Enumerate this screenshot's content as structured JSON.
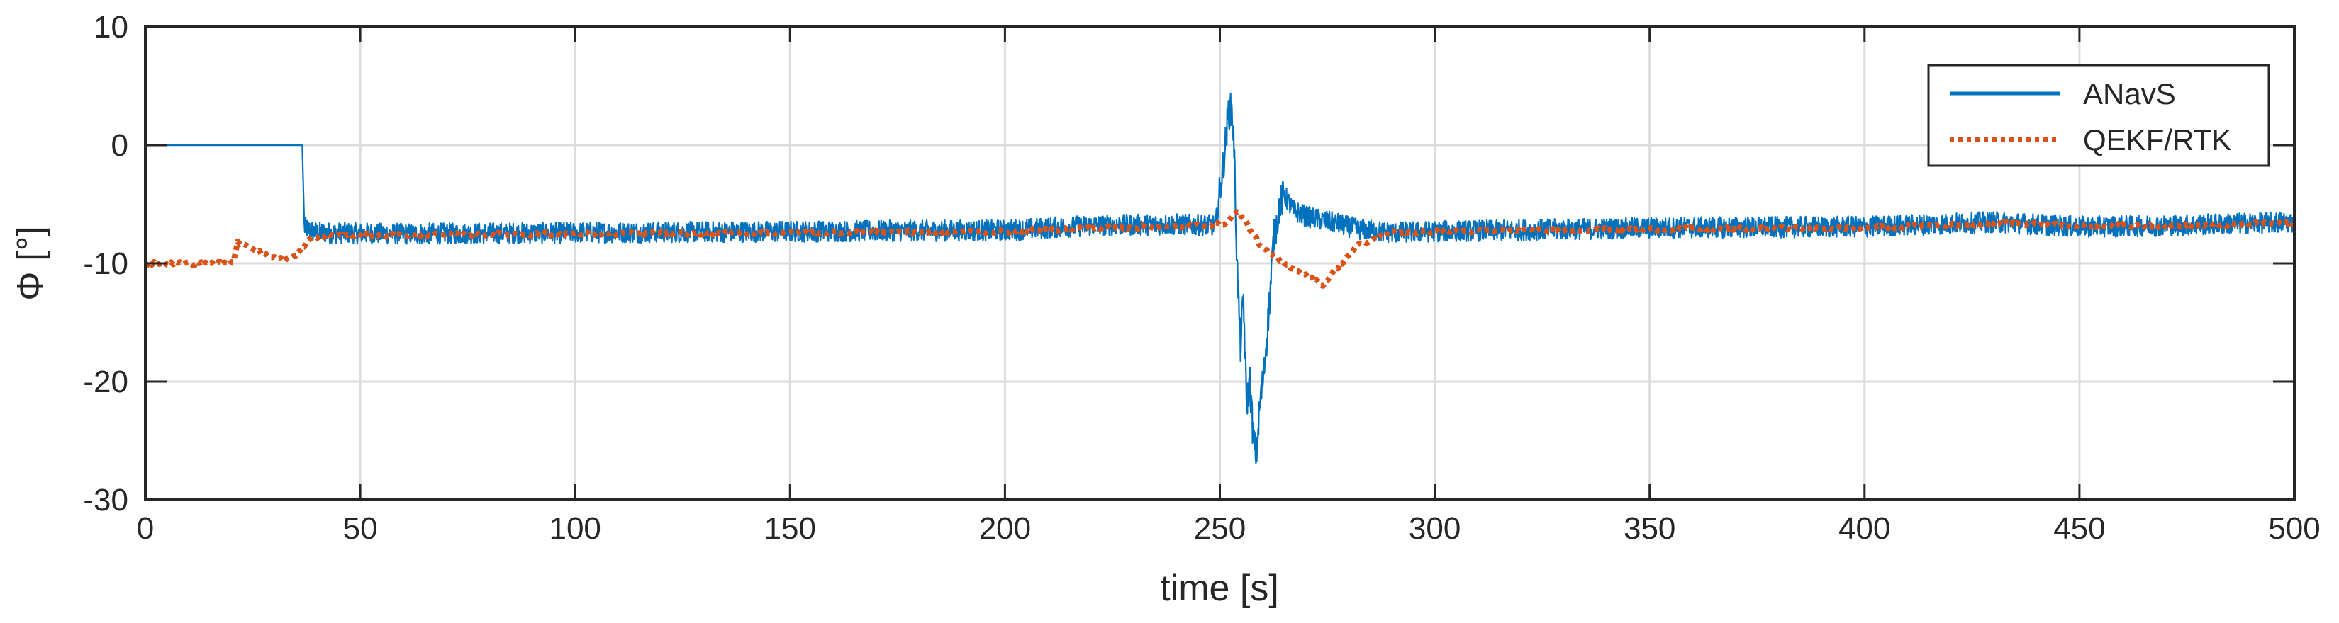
{
  "chart_data": {
    "type": "line",
    "title": "",
    "xlabel": "time [s]",
    "ylabel": "Φ [°]",
    "xlim": [
      0,
      500
    ],
    "ylim": [
      -30,
      10
    ],
    "xticks": [
      0,
      50,
      100,
      150,
      200,
      250,
      300,
      350,
      400,
      450,
      500
    ],
    "yticks": [
      -30,
      -20,
      -10,
      0,
      10
    ],
    "grid": true,
    "legend_position": "top-right",
    "series": [
      {
        "name": "ANavS",
        "color": "#0072BD",
        "style": "solid",
        "noise_amplitude": 0.9,
        "points": [
          [
            0,
            0
          ],
          [
            36.5,
            0
          ],
          [
            37,
            -7.0
          ],
          [
            40,
            -7.4
          ],
          [
            60,
            -7.5
          ],
          [
            100,
            -7.4
          ],
          [
            150,
            -7.3
          ],
          [
            200,
            -7.2
          ],
          [
            220,
            -6.8
          ],
          [
            240,
            -6.7
          ],
          [
            249,
            -6.8
          ],
          [
            251,
            -1
          ],
          [
            252,
            2.8
          ],
          [
            252.8,
            3
          ],
          [
            253.3,
            0
          ],
          [
            254,
            -10
          ],
          [
            254.8,
            -17
          ],
          [
            255.5,
            -13
          ],
          [
            256.2,
            -22
          ],
          [
            257,
            -20
          ],
          [
            257.8,
            -25
          ],
          [
            258.5,
            -26.2
          ],
          [
            259.3,
            -22
          ],
          [
            260,
            -20
          ],
          [
            261,
            -16
          ],
          [
            261.8,
            -12
          ],
          [
            262.5,
            -8
          ],
          [
            264,
            -5
          ],
          [
            265,
            -4.2
          ],
          [
            267,
            -5.5
          ],
          [
            270,
            -6.0
          ],
          [
            273,
            -6.3
          ],
          [
            277,
            -6.6
          ],
          [
            282,
            -7.1
          ],
          [
            290,
            -7.4
          ],
          [
            300,
            -7.3
          ],
          [
            350,
            -7.0
          ],
          [
            400,
            -6.9
          ],
          [
            430,
            -6.5
          ],
          [
            450,
            -6.9
          ],
          [
            470,
            -6.8
          ],
          [
            500,
            -6.5
          ]
        ]
      },
      {
        "name": "QEKF/RTK",
        "color": "#D95319",
        "style": "dotted",
        "noise_amplitude": 0.15,
        "points": [
          [
            0,
            -10
          ],
          [
            20.5,
            -10
          ],
          [
            21.5,
            -8.2
          ],
          [
            24,
            -8.5
          ],
          [
            28,
            -9.3
          ],
          [
            32,
            -9.7
          ],
          [
            35,
            -9.4
          ],
          [
            38,
            -8.0
          ],
          [
            42,
            -7.6
          ],
          [
            60,
            -7.6
          ],
          [
            100,
            -7.5
          ],
          [
            150,
            -7.4
          ],
          [
            200,
            -7.3
          ],
          [
            220,
            -7.0
          ],
          [
            240,
            -6.9
          ],
          [
            250,
            -6.7
          ],
          [
            252,
            -6.5
          ],
          [
            254,
            -5.5
          ],
          [
            256,
            -6.5
          ],
          [
            260,
            -8.8
          ],
          [
            265,
            -10.0
          ],
          [
            270,
            -11.0
          ],
          [
            274,
            -11.8
          ],
          [
            277,
            -10.5
          ],
          [
            282,
            -8.5
          ],
          [
            290,
            -7.4
          ],
          [
            300,
            -7.3
          ],
          [
            350,
            -7.1
          ],
          [
            400,
            -7.0
          ],
          [
            430,
            -6.6
          ],
          [
            450,
            -6.8
          ],
          [
            470,
            -6.8
          ],
          [
            500,
            -6.6
          ]
        ]
      }
    ]
  }
}
